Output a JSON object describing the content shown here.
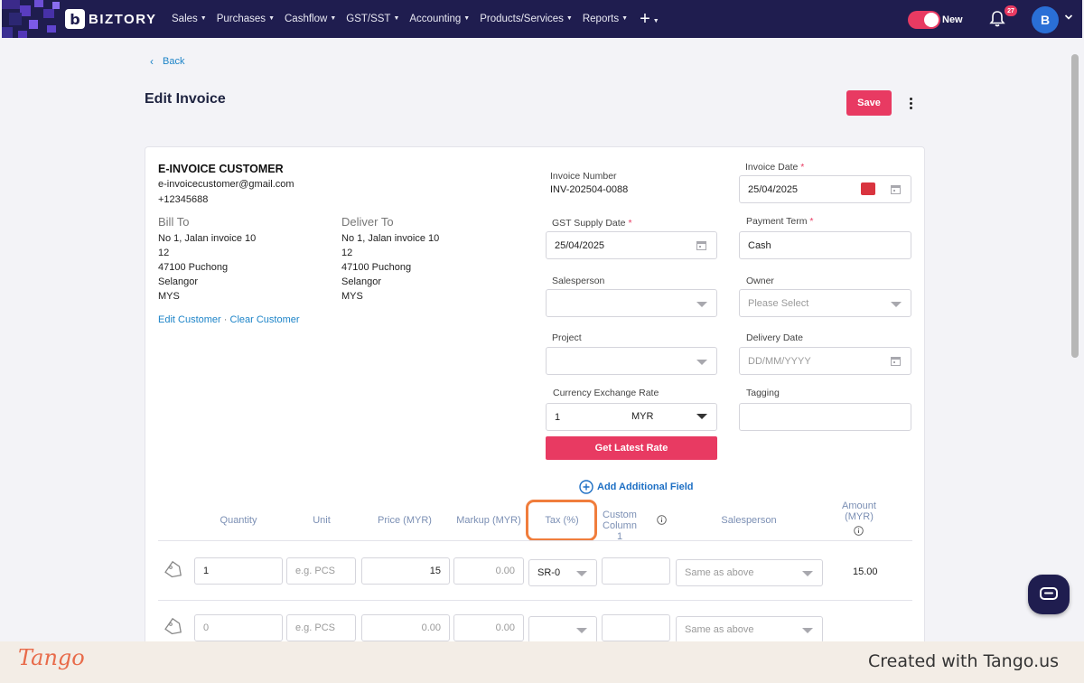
{
  "app": {
    "brand": "BIZTORY",
    "brand_mark": "b",
    "menu": [
      "Sales",
      "Purchases",
      "Cashflow",
      "GST/SST",
      "Accounting",
      "Products/Services",
      "Reports"
    ],
    "toggle_label": "New",
    "notification_count": "27",
    "avatar_letter": "B",
    "accent_color": "#e83a62",
    "nav_color": "#1f1d4f"
  },
  "page": {
    "back_label": "Back",
    "title": "Edit Invoice",
    "save_label": "Save"
  },
  "customer": {
    "name": "E-INVOICE CUSTOMER",
    "email": "e-invoicecustomer@gmail.com",
    "phone": "+12345688",
    "bill_to": {
      "heading": "Bill To",
      "lines": [
        "No 1, Jalan invoice 10",
        "12",
        "47100 Puchong",
        "Selangor",
        "MYS"
      ]
    },
    "deliver_to": {
      "heading": "Deliver To",
      "lines": [
        "No 1, Jalan invoice 10",
        "12",
        "47100 Puchong",
        "Selangor",
        "MYS"
      ]
    },
    "edit_link": "Edit Customer",
    "separator": "·",
    "clear_link": "Clear Customer"
  },
  "fields": {
    "invoice_number_label": "Invoice Number",
    "invoice_number": "INV-202504-0088",
    "invoice_date_label": "Invoice Date",
    "invoice_date": "25/04/2025",
    "gst_supply_date_label": "GST Supply Date",
    "gst_supply_date": "25/04/2025",
    "payment_term_label": "Payment Term",
    "payment_term": "Cash",
    "salesperson_label": "Salesperson",
    "salesperson": "",
    "owner_label": "Owner",
    "owner_placeholder": "Please Select",
    "project_label": "Project",
    "project": "",
    "delivery_date_label": "Delivery Date",
    "delivery_date_placeholder": "DD/MM/YYYY",
    "currency_rate_label": "Currency Exchange Rate",
    "currency_rate": "1",
    "currency_code": "MYR",
    "tagging_label": "Tagging",
    "tagging": "",
    "required_mark": "*",
    "latest_rate_label": "Get Latest Rate",
    "add_field_label": "Add Additional Field"
  },
  "table": {
    "headers": {
      "quantity": "Quantity",
      "unit": "Unit",
      "price": "Price (MYR)",
      "markup": "Markup (MYR)",
      "tax": "Tax (%)",
      "custom1_line1": "Custom",
      "custom1_line2": "Column 1",
      "salesperson": "Salesperson",
      "amount_line1": "Amount",
      "amount_line2": "(MYR)"
    },
    "rows": [
      {
        "quantity": "1",
        "unit_placeholder": "e.g. PCS",
        "price": "15",
        "markup": "0.00",
        "tax": "SR-0",
        "custom1": "",
        "salesperson_placeholder": "Same as above",
        "amount": "15.00"
      },
      {
        "quantity": "0",
        "unit_placeholder": "e.g. PCS",
        "price": "0.00",
        "markup": "0.00",
        "tax": "",
        "custom1": "",
        "salesperson_placeholder": "Same as above",
        "amount": ""
      }
    ]
  },
  "footer": {
    "logo": "Tango",
    "credit": "Created with Tango.us"
  }
}
